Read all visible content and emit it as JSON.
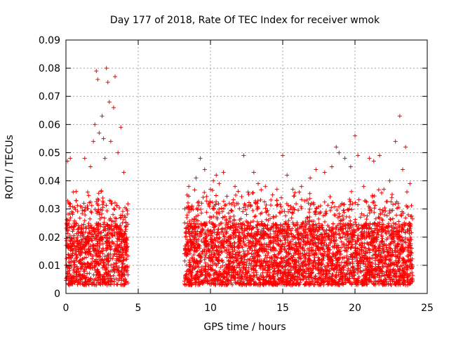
{
  "chart_data": {
    "type": "scatter",
    "title": "Day 177 of 2018, Rate Of TEC Index for receiver wmok",
    "xlabel": "GPS time / hours",
    "ylabel": "ROTI / TECUs",
    "xlim": [
      0,
      25
    ],
    "ylim": [
      0,
      0.09
    ],
    "xticks": [
      "0",
      "5",
      "10",
      "15",
      "20",
      "25"
    ],
    "yticks": [
      "0",
      "0.01",
      "0.02",
      "0.03",
      "0.04",
      "0.05",
      "0.06",
      "0.07",
      "0.08",
      "0.09"
    ],
    "grid": true,
    "marker": "plus",
    "color": "#ff0000",
    "data_segments": [
      {
        "x_start": 0.0,
        "x_end": 4.3
      },
      {
        "x_start": 8.2,
        "x_end": 24.0
      }
    ],
    "series": [
      {
        "points": [
          [
            0.1,
            0.047
          ],
          [
            0.3,
            0.048
          ],
          [
            0.5,
            0.036
          ],
          [
            0.7,
            0.033
          ],
          [
            1.0,
            0.031
          ],
          [
            1.3,
            0.048
          ],
          [
            1.5,
            0.036
          ],
          [
            1.7,
            0.045
          ],
          [
            1.9,
            0.054
          ],
          [
            2.0,
            0.06
          ],
          [
            2.1,
            0.079
          ],
          [
            2.2,
            0.076
          ],
          [
            2.3,
            0.057
          ],
          [
            2.5,
            0.063
          ],
          [
            2.6,
            0.055
          ],
          [
            2.7,
            0.048
          ],
          [
            2.8,
            0.08
          ],
          [
            2.9,
            0.075
          ],
          [
            3.0,
            0.068
          ],
          [
            3.1,
            0.054
          ],
          [
            3.3,
            0.066
          ],
          [
            3.4,
            0.077
          ],
          [
            3.6,
            0.05
          ],
          [
            3.8,
            0.059
          ],
          [
            4.0,
            0.043
          ],
          [
            4.2,
            0.03
          ],
          [
            8.5,
            0.038
          ],
          [
            9.0,
            0.041
          ],
          [
            9.3,
            0.048
          ],
          [
            9.6,
            0.044
          ],
          [
            10.0,
            0.037
          ],
          [
            10.2,
            0.04
          ],
          [
            10.4,
            0.042
          ],
          [
            10.6,
            0.039
          ],
          [
            10.9,
            0.043
          ],
          [
            11.3,
            0.032
          ],
          [
            11.7,
            0.038
          ],
          [
            12.3,
            0.049
          ],
          [
            12.6,
            0.036
          ],
          [
            13.0,
            0.043
          ],
          [
            13.3,
            0.039
          ],
          [
            13.8,
            0.038
          ],
          [
            14.3,
            0.035
          ],
          [
            14.6,
            0.037
          ],
          [
            14.9,
            0.034
          ],
          [
            15.0,
            0.049
          ],
          [
            15.3,
            0.042
          ],
          [
            15.7,
            0.037
          ],
          [
            16.3,
            0.038
          ],
          [
            16.9,
            0.041
          ],
          [
            17.3,
            0.044
          ],
          [
            17.9,
            0.043
          ],
          [
            18.4,
            0.045
          ],
          [
            18.7,
            0.052
          ],
          [
            18.9,
            0.05
          ],
          [
            19.3,
            0.048
          ],
          [
            19.7,
            0.045
          ],
          [
            20.0,
            0.056
          ],
          [
            20.2,
            0.049
          ],
          [
            20.6,
            0.038
          ],
          [
            21.0,
            0.048
          ],
          [
            21.3,
            0.047
          ],
          [
            21.7,
            0.049
          ],
          [
            22.0,
            0.037
          ],
          [
            22.4,
            0.04
          ],
          [
            22.8,
            0.054
          ],
          [
            23.1,
            0.063
          ],
          [
            23.3,
            0.044
          ],
          [
            23.5,
            0.052
          ],
          [
            23.8,
            0.039
          ]
        ]
      }
    ]
  }
}
